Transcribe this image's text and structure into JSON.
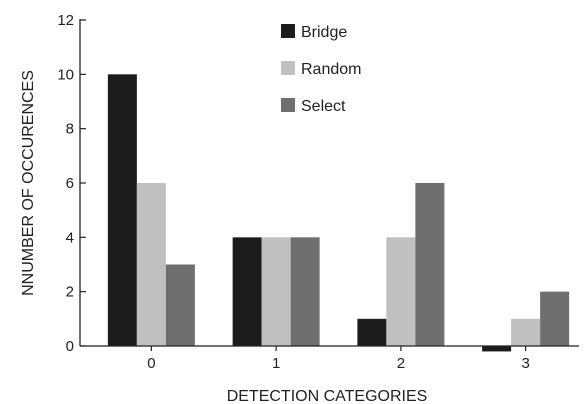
{
  "chart_data": {
    "type": "bar",
    "title": "",
    "xlabel": "DETECTION CATEGORIES",
    "ylabel": "NNUMBER OF OCCURENCES",
    "categories": [
      "0",
      "1",
      "2",
      "3"
    ],
    "ylim": [
      0,
      12
    ],
    "yticks": [
      "0",
      "2",
      "4",
      "6",
      "8",
      "10",
      "12"
    ],
    "grid": false,
    "legend_position": "top-center",
    "series": [
      {
        "name": "Bridge",
        "values": [
          10,
          4,
          1,
          -0.2
        ],
        "color": "#1c1c1c"
      },
      {
        "name": "Random",
        "values": [
          6,
          4,
          4,
          1
        ],
        "color": "#c0c0c0"
      },
      {
        "name": "Select",
        "values": [
          3,
          4,
          6,
          2
        ],
        "color": "#6e6e6e"
      }
    ]
  }
}
